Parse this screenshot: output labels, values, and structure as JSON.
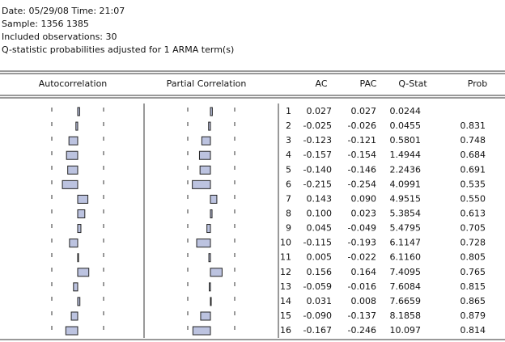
{
  "header": {
    "lines": [
      "Date: 05/29/08   Time: 21:07",
      "Sample: 1356 1385",
      "Included observations: 30",
      "Q-statistic probabilities adjusted for 1 ARMA term(s)"
    ]
  },
  "table": {
    "columns": [
      "Autocorrelation",
      "Partial Correlation",
      "AC",
      "PAC",
      "Q-Stat",
      "Prob"
    ],
    "rows": [
      {
        "lag": "1",
        "ac": "0.027",
        "pac": "0.027",
        "q": "0.0244",
        "prob": null
      },
      {
        "lag": "2",
        "ac": "-0.025",
        "pac": "-0.026",
        "q": "0.0455",
        "prob": "0.831"
      },
      {
        "lag": "3",
        "ac": "-0.123",
        "pac": "-0.121",
        "q": "0.5801",
        "prob": "0.748"
      },
      {
        "lag": "4",
        "ac": "-0.157",
        "pac": "-0.154",
        "q": "1.4944",
        "prob": "0.684"
      },
      {
        "lag": "5",
        "ac": "-0.140",
        "pac": "-0.146",
        "q": "2.2436",
        "prob": "0.691"
      },
      {
        "lag": "6",
        "ac": "-0.215",
        "pac": "-0.254",
        "q": "4.0991",
        "prob": "0.535"
      },
      {
        "lag": "7",
        "ac": "0.143",
        "pac": "0.090",
        "q": "4.9515",
        "prob": "0.550"
      },
      {
        "lag": "8",
        "ac": "0.100",
        "pac": "0.023",
        "q": "5.3854",
        "prob": "0.613"
      },
      {
        "lag": "9",
        "ac": "0.045",
        "pac": "-0.049",
        "q": "5.4795",
        "prob": "0.705"
      },
      {
        "lag": "10",
        "ac": "-0.115",
        "pac": "-0.193",
        "q": "6.1147",
        "prob": "0.728"
      },
      {
        "lag": "11",
        "ac": "0.005",
        "pac": "-0.022",
        "q": "6.1160",
        "prob": "0.805"
      },
      {
        "lag": "12",
        "ac": "0.156",
        "pac": "0.164",
        "q": "7.4095",
        "prob": "0.765"
      },
      {
        "lag": "13",
        "ac": "-0.059",
        "pac": "-0.016",
        "q": "7.6084",
        "prob": "0.815"
      },
      {
        "lag": "14",
        "ac": "0.031",
        "pac": "0.008",
        "q": "7.6659",
        "prob": "0.865"
      },
      {
        "lag": "15",
        "ac": "-0.090",
        "pac": "-0.137",
        "q": "8.1858",
        "prob": "0.879"
      },
      {
        "lag": "16",
        "ac": "-0.167",
        "pac": "-0.246",
        "q": "10.097",
        "prob": "0.814"
      }
    ]
  }
}
